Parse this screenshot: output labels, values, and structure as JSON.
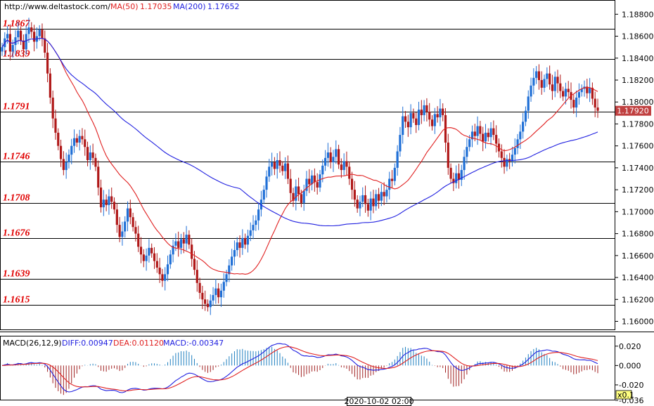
{
  "header": {
    "site": "http://www.deltastock.com/",
    "ma50_label": "MA(50)",
    "ma50_value": "1.17035",
    "ma200_label": "MA(200)",
    "ma200_value": "1.17652"
  },
  "macd_header": {
    "name": "MACD(26,12,9)",
    "diff": "DIFF:0.00947",
    "dea": "DEA:0.01120",
    "macd": "MACD:-0.00347"
  },
  "time_label": "2020-10-02 02:00",
  "zoom_label": "x0.1",
  "colors": {
    "bull": "#1f6fd6",
    "bear": "#b01818",
    "ma50": "#e02020",
    "ma200": "#2020e0",
    "level_text": "#e00000",
    "price_tag_bg": "#c04040"
  },
  "chart_data": {
    "type": "candlestick",
    "price_axis": {
      "min": 1.1592,
      "max": 1.1893,
      "ticks": [
        "1.18800",
        "1.18600",
        "1.18400",
        "1.18200",
        "1.18000",
        "1.17800",
        "1.17600",
        "1.17400",
        "1.17200",
        "1.17000",
        "1.16800",
        "1.16600",
        "1.16400",
        "1.16200",
        "1.16000"
      ]
    },
    "current_price": "1.17920",
    "levels": [
      "1.1867",
      "1.1839",
      "1.1791",
      "1.1746",
      "1.1708",
      "1.1676",
      "1.1639",
      "1.1615"
    ],
    "close_series": [
      1.185,
      1.1858,
      1.1862,
      1.1846,
      1.1852,
      1.1859,
      1.1865,
      1.1856,
      1.1848,
      1.1862,
      1.1868,
      1.1864,
      1.1855,
      1.186,
      1.1866,
      1.1858,
      1.1845,
      1.1826,
      1.1804,
      1.1785,
      1.1772,
      1.176,
      1.1748,
      1.1738,
      1.1745,
      1.1752,
      1.176,
      1.1767,
      1.1763,
      1.1769,
      1.1766,
      1.1759,
      1.1747,
      1.1754,
      1.1749,
      1.1741,
      1.1722,
      1.1704,
      1.1711,
      1.1706,
      1.1714,
      1.1709,
      1.1702,
      1.1688,
      1.1677,
      1.1682,
      1.1691,
      1.1703,
      1.1695,
      1.1686,
      1.168,
      1.1668,
      1.1661,
      1.1655,
      1.166,
      1.1667,
      1.1662,
      1.1655,
      1.1649,
      1.1643,
      1.1637,
      1.1643,
      1.1652,
      1.1661,
      1.1669,
      1.1673,
      1.1667,
      1.1675,
      1.1671,
      1.1679,
      1.167,
      1.1657,
      1.1647,
      1.1635,
      1.1626,
      1.162,
      1.1616,
      1.1613,
      1.1619,
      1.1624,
      1.163,
      1.1622,
      1.1628,
      1.1636,
      1.1643,
      1.1651,
      1.1659,
      1.1665,
      1.1672,
      1.1667,
      1.1676,
      1.167,
      1.1678,
      1.1683,
      1.1688,
      1.1692,
      1.1702,
      1.1711,
      1.172,
      1.1732,
      1.1741,
      1.1745,
      1.1739,
      1.1747,
      1.1742,
      1.1737,
      1.1744,
      1.173,
      1.1717,
      1.171,
      1.1723,
      1.1716,
      1.1708,
      1.1719,
      1.173,
      1.1725,
      1.1733,
      1.1727,
      1.1722,
      1.1734,
      1.1742,
      1.1749,
      1.1754,
      1.1745,
      1.175,
      1.1757,
      1.1743,
      1.1738,
      1.1746,
      1.1741,
      1.173,
      1.172,
      1.1711,
      1.1703,
      1.1709,
      1.1715,
      1.1707,
      1.1701,
      1.1712,
      1.1705,
      1.1716,
      1.171,
      1.1718,
      1.1714,
      1.172,
      1.173,
      1.1728,
      1.174,
      1.1755,
      1.177,
      1.1787,
      1.1782,
      1.1777,
      1.179,
      1.1785,
      1.1779,
      1.1793,
      1.1788,
      1.1797,
      1.1791,
      1.1784,
      1.1778,
      1.1789,
      1.1786,
      1.1794,
      1.1788,
      1.1763,
      1.174,
      1.173,
      1.1726,
      1.1735,
      1.1729,
      1.1738,
      1.175,
      1.1759,
      1.1766,
      1.1773,
      1.1769,
      1.1778,
      1.1771,
      1.1764,
      1.1772,
      1.1768,
      1.1776,
      1.177,
      1.1762,
      1.1755,
      1.1749,
      1.1741,
      1.1748,
      1.1746,
      1.1752,
      1.1758,
      1.1766,
      1.1773,
      1.1782,
      1.1792,
      1.1805,
      1.1815,
      1.1822,
      1.1828,
      1.182,
      1.1813,
      1.1821,
      1.1826,
      1.1816,
      1.181,
      1.1823,
      1.1817,
      1.181,
      1.1805,
      1.1812,
      1.1809,
      1.1802,
      1.1795,
      1.1804,
      1.1809,
      1.1812,
      1.1814,
      1.1808,
      1.1813,
      1.1803,
      1.1795,
      1.1792
    ],
    "ma50_value": 1.17035,
    "ma200_value": 1.17652,
    "macd": {
      "axis_ticks": [
        "0.020",
        "0.000",
        "-0.020",
        "-0.036"
      ],
      "min": -0.036,
      "max": 0.03,
      "diff": 0.00947,
      "dea": 0.0112,
      "hist": -0.00347
    }
  }
}
